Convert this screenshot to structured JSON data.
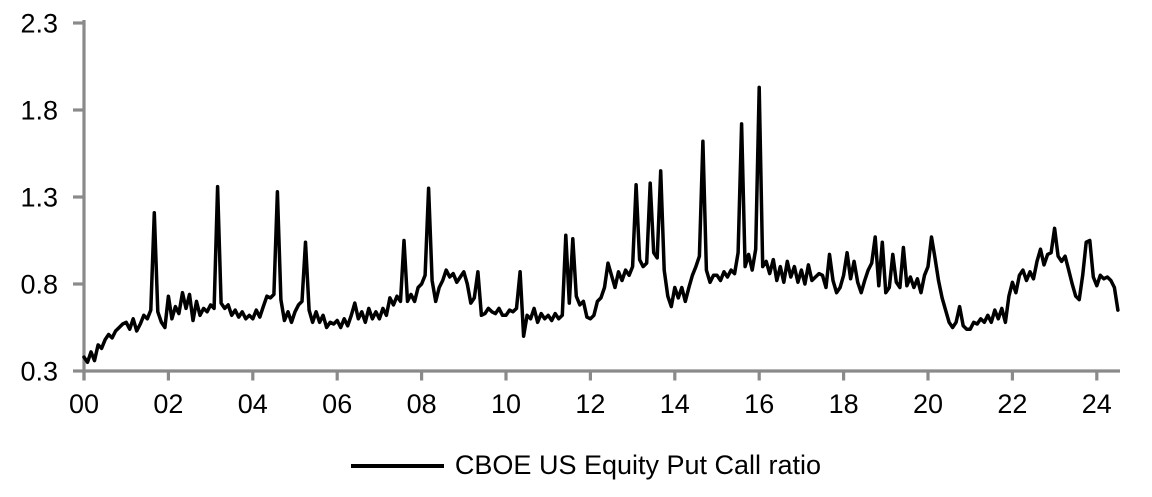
{
  "chart_data": {
    "type": "line",
    "title": "",
    "xlabel": "",
    "ylabel": "",
    "grid": false,
    "legend": {
      "label": "CBOE US Equity Put Call ratio",
      "position": "bottom-center"
    },
    "colors": {
      "line": "#000000",
      "axis": "#8a8a8a",
      "text": "#000000",
      "background": "#ffffff"
    },
    "ylim": [
      0.3,
      2.3
    ],
    "y_ticks": [
      0.3,
      0.8,
      1.3,
      1.8,
      2.3
    ],
    "y_tick_labels": [
      "0.3",
      "0.8",
      "1.3",
      "1.8",
      "2.3"
    ],
    "x_axis": {
      "tick_years": [
        2000,
        2002,
        2004,
        2006,
        2008,
        2010,
        2012,
        2014,
        2016,
        2018,
        2020,
        2022,
        2024
      ],
      "tick_labels": [
        "00",
        "02",
        "04",
        "06",
        "08",
        "10",
        "12",
        "14",
        "16",
        "18",
        "20",
        "22",
        "24"
      ]
    },
    "series": [
      {
        "name": "CBOE US Equity Put Call ratio",
        "x_start_year": 2000.0,
        "x_step_years": 0.0833333,
        "values": [
          0.38,
          0.35,
          0.41,
          0.36,
          0.45,
          0.43,
          0.48,
          0.51,
          0.49,
          0.53,
          0.55,
          0.57,
          0.58,
          0.54,
          0.6,
          0.53,
          0.57,
          0.62,
          0.6,
          0.65,
          1.21,
          0.64,
          0.58,
          0.55,
          0.73,
          0.6,
          0.67,
          0.63,
          0.75,
          0.66,
          0.74,
          0.59,
          0.7,
          0.62,
          0.66,
          0.64,
          0.68,
          0.66,
          1.36,
          0.69,
          0.66,
          0.68,
          0.62,
          0.65,
          0.61,
          0.64,
          0.6,
          0.62,
          0.6,
          0.65,
          0.61,
          0.67,
          0.73,
          0.72,
          0.74,
          1.33,
          0.71,
          0.59,
          0.64,
          0.58,
          0.64,
          0.68,
          0.7,
          1.04,
          0.65,
          0.58,
          0.64,
          0.58,
          0.62,
          0.55,
          0.58,
          0.57,
          0.59,
          0.55,
          0.6,
          0.56,
          0.62,
          0.69,
          0.6,
          0.64,
          0.58,
          0.66,
          0.6,
          0.64,
          0.6,
          0.66,
          0.62,
          0.72,
          0.68,
          0.73,
          0.7,
          1.05,
          0.7,
          0.74,
          0.7,
          0.78,
          0.8,
          0.85,
          1.35,
          0.82,
          0.7,
          0.78,
          0.82,
          0.88,
          0.84,
          0.86,
          0.81,
          0.84,
          0.87,
          0.8,
          0.69,
          0.72,
          0.87,
          0.62,
          0.63,
          0.66,
          0.64,
          0.63,
          0.66,
          0.62,
          0.62,
          0.65,
          0.64,
          0.66,
          0.87,
          0.5,
          0.62,
          0.6,
          0.66,
          0.58,
          0.63,
          0.6,
          0.62,
          0.59,
          0.63,
          0.6,
          0.62,
          1.08,
          0.69,
          1.06,
          0.73,
          0.68,
          0.7,
          0.61,
          0.6,
          0.62,
          0.7,
          0.72,
          0.78,
          0.92,
          0.85,
          0.78,
          0.87,
          0.82,
          0.88,
          0.85,
          0.9,
          1.37,
          0.94,
          0.9,
          0.92,
          1.38,
          0.98,
          0.95,
          1.45,
          0.88,
          0.73,
          0.67,
          0.78,
          0.72,
          0.78,
          0.7,
          0.78,
          0.85,
          0.9,
          0.96,
          1.62,
          0.88,
          0.81,
          0.85,
          0.85,
          0.82,
          0.87,
          0.84,
          0.88,
          0.86,
          0.98,
          1.72,
          0.9,
          0.97,
          0.88,
          1.0,
          1.93,
          0.9,
          0.93,
          0.86,
          0.94,
          0.82,
          0.9,
          0.81,
          0.93,
          0.84,
          0.9,
          0.81,
          0.88,
          0.8,
          0.91,
          0.82,
          0.84,
          0.86,
          0.85,
          0.78,
          0.97,
          0.82,
          0.75,
          0.78,
          0.85,
          0.98,
          0.83,
          0.93,
          0.81,
          0.75,
          0.82,
          0.88,
          0.92,
          1.07,
          0.79,
          1.04,
          0.75,
          0.78,
          0.97,
          0.81,
          0.78,
          1.01,
          0.79,
          0.84,
          0.78,
          0.83,
          0.75,
          0.85,
          0.9,
          1.07,
          0.95,
          0.82,
          0.72,
          0.65,
          0.58,
          0.55,
          0.58,
          0.67,
          0.56,
          0.54,
          0.54,
          0.58,
          0.57,
          0.6,
          0.58,
          0.62,
          0.58,
          0.65,
          0.6,
          0.66,
          0.58,
          0.73,
          0.81,
          0.75,
          0.85,
          0.88,
          0.82,
          0.87,
          0.83,
          0.93,
          1.0,
          0.91,
          0.97,
          0.98,
          1.12,
          0.96,
          0.93,
          0.96,
          0.88,
          0.8,
          0.73,
          0.71,
          0.85,
          1.04,
          1.05,
          0.84,
          0.79,
          0.85,
          0.83,
          0.84,
          0.82,
          0.78,
          0.65
        ]
      }
    ]
  }
}
